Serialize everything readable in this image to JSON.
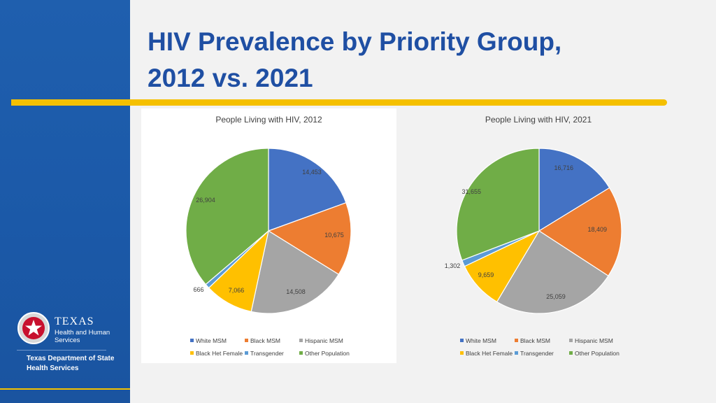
{
  "slide": {
    "title_line1": "HIV Prevalence by Priority Group,",
    "title_line2": "2012 vs. 2021"
  },
  "branding": {
    "logo_word": "TEXAS",
    "logo_line2": "Health and Human",
    "logo_line3": "Services",
    "dept_line1": "Texas Department of State",
    "dept_line2": "Health Services"
  },
  "colors": {
    "sidebar": "#1f5fae",
    "accent": "#f5c000",
    "title": "#1f4fa3"
  },
  "chart_data": [
    {
      "type": "pie",
      "title": "People Living with HIV, 2012",
      "categories": [
        "White MSM",
        "Black MSM",
        "Hispanic MSM",
        "Black Het Female",
        "Transgender",
        "Other Population"
      ],
      "values": [
        14453,
        10675,
        14508,
        7066,
        666,
        26904
      ],
      "labels": [
        "14,453",
        "10,675",
        "14,508",
        "7,066",
        "666",
        "26,904"
      ],
      "colors": [
        "#4472c4",
        "#ed7d31",
        "#a5a5a5",
        "#ffc000",
        "#5b9bd5",
        "#70ad47"
      ],
      "legend_position": "bottom"
    },
    {
      "type": "pie",
      "title": "People Living with HIV, 2021",
      "categories": [
        "White MSM",
        "Black MSM",
        "Hispanic MSM",
        "Black Het Female",
        "Transgender",
        "Other Population"
      ],
      "values": [
        16716,
        18409,
        25059,
        9659,
        1302,
        31655
      ],
      "labels": [
        "16,716",
        "18,409",
        "25,059",
        "9,659",
        "1,302",
        "31,655"
      ],
      "colors": [
        "#4472c4",
        "#ed7d31",
        "#a5a5a5",
        "#ffc000",
        "#5b9bd5",
        "#70ad47"
      ],
      "legend_position": "bottom"
    }
  ]
}
